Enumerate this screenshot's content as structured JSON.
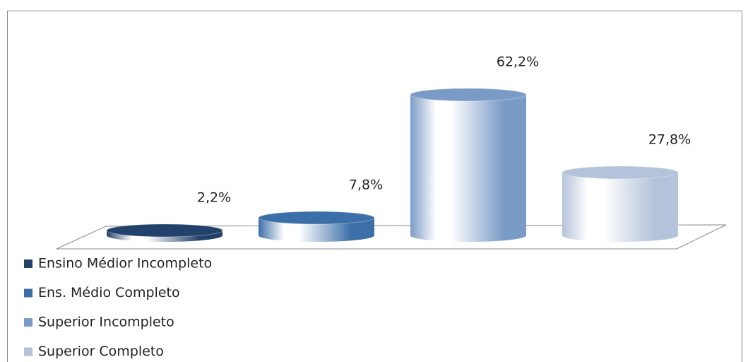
{
  "chart_data": {
    "type": "bar",
    "series": [
      {
        "name": "Ensino Médior Incompleto",
        "color": "#23426b",
        "values": [
          2.2
        ],
        "value_labels": [
          "2,2%"
        ]
      },
      {
        "name": "Ens. Médio Completo",
        "color": "#3c6fa8",
        "values": [
          7.8
        ],
        "value_labels": [
          "7,8%"
        ]
      },
      {
        "name": "Superior Incompleto",
        "color": "#7b9bc7",
        "values": [
          62.2
        ],
        "value_labels": [
          "62,2%"
        ]
      },
      {
        "name": "Superior Completo",
        "color": "#b4c2da",
        "values": [
          27.8
        ],
        "value_labels": [
          "27,8%"
        ]
      }
    ]
  }
}
